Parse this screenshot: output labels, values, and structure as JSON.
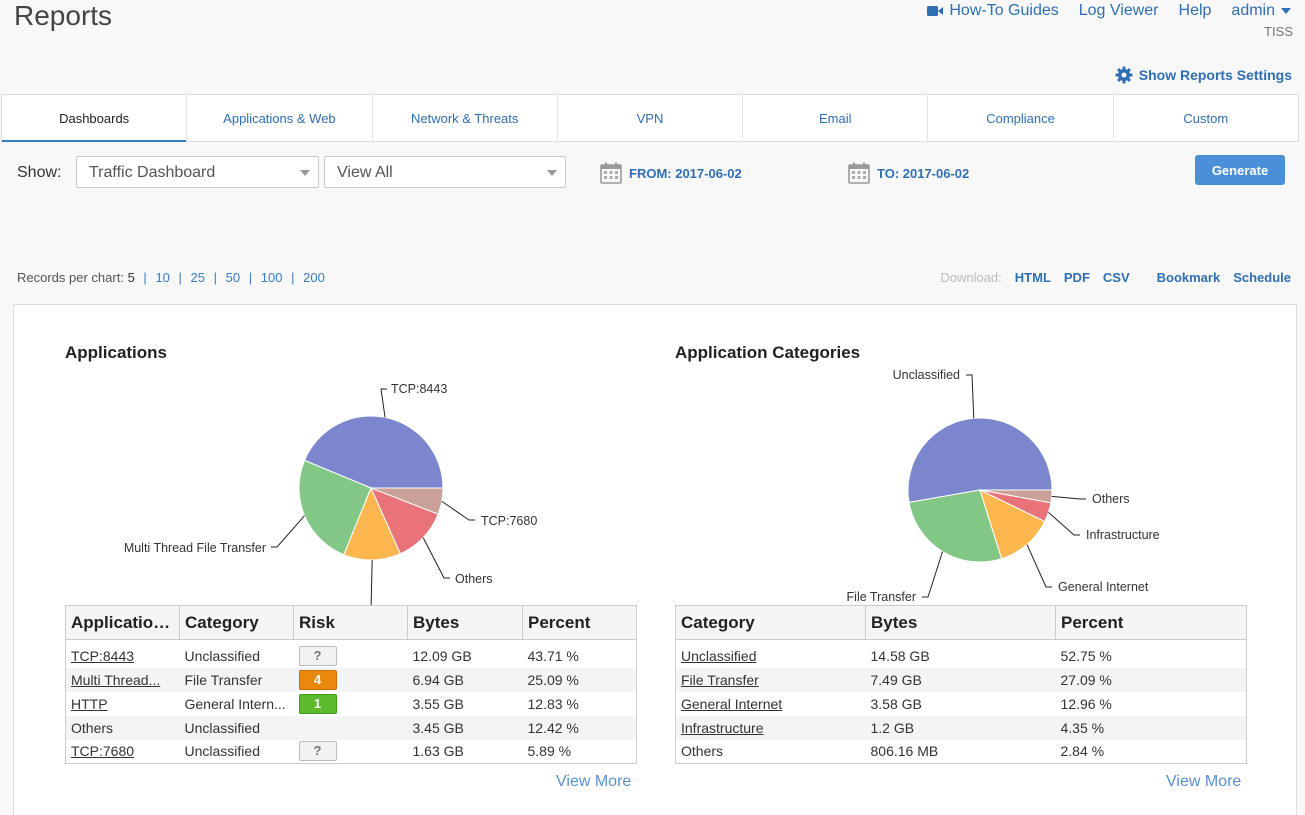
{
  "header": {
    "title": "Reports",
    "nav": {
      "howto": "How-To Guides",
      "logviewer": "Log Viewer",
      "help": "Help",
      "admin": "admin"
    },
    "tenant": "TISS",
    "settings_link": "Show Reports Settings"
  },
  "tabs": [
    "Dashboards",
    "Applications & Web",
    "Network & Threats",
    "VPN",
    "Email",
    "Compliance",
    "Custom"
  ],
  "filters": {
    "show_label": "Show:",
    "dashboard_select": "Traffic Dashboard",
    "view_select": "View All",
    "from": "FROM: 2017-06-02",
    "to": "TO: 2017-06-02",
    "generate": "Generate"
  },
  "records": {
    "label": "Records per chart:",
    "options": [
      "5",
      "10",
      "25",
      "50",
      "100",
      "200"
    ]
  },
  "download": {
    "label": "Download:",
    "html": "HTML",
    "pdf": "PDF",
    "csv": "CSV",
    "bookmark": "Bookmark",
    "schedule": "Schedule"
  },
  "applications": {
    "title": "Applications",
    "columns": [
      "Application...",
      "Category",
      "Risk",
      "Bytes",
      "Percent"
    ],
    "rows": [
      {
        "app": "TCP:8443",
        "category": "Unclassified",
        "risk": "?",
        "bytes": "12.09 GB",
        "percent": "43.71 %"
      },
      {
        "app": "Multi Thread...",
        "category": "File Transfer",
        "risk": "4",
        "bytes": "6.94 GB",
        "percent": "25.09 %"
      },
      {
        "app": "HTTP",
        "category": "General Intern...",
        "risk": "1",
        "bytes": "3.55 GB",
        "percent": "12.83 %"
      },
      {
        "app": "Others",
        "category": "Unclassified",
        "risk": "",
        "bytes": "3.45 GB",
        "percent": "12.42 %"
      },
      {
        "app": "TCP:7680",
        "category": "Unclassified",
        "risk": "?",
        "bytes": "1.63 GB",
        "percent": "5.89 %"
      }
    ],
    "view_more": "View More"
  },
  "categories": {
    "title": "Application Categories",
    "columns": [
      "Category",
      "Bytes",
      "Percent"
    ],
    "rows": [
      {
        "category": "Unclassified",
        "bytes": "14.58 GB",
        "percent": "52.75 %"
      },
      {
        "category": "File Transfer",
        "bytes": "7.49 GB",
        "percent": "27.09 %"
      },
      {
        "category": "General Internet",
        "bytes": "3.58 GB",
        "percent": "12.96 %"
      },
      {
        "category": "Infrastructure",
        "bytes": "1.2 GB",
        "percent": "4.35 %"
      },
      {
        "category": "Others",
        "bytes": "806.16 MB",
        "percent": "2.84 %"
      }
    ],
    "view_more": "View More"
  },
  "chart_data": [
    {
      "type": "pie",
      "title": "Applications",
      "categories": [
        "TCP:8443",
        "Multi Thread File Transfer",
        "HTTP",
        "Others",
        "TCP:7680"
      ],
      "values": [
        43.71,
        25.09,
        12.83,
        12.42,
        5.89
      ],
      "colors": [
        "#7b86cf",
        "#82c785",
        "#fdb74e",
        "#e8747a",
        "#c9a199"
      ],
      "labels": [
        "TCP:8443",
        "Multi Thread File Transfer",
        "",
        "Others",
        "TCP:7680"
      ]
    },
    {
      "type": "pie",
      "title": "Application Categories",
      "categories": [
        "Unclassified",
        "File Transfer",
        "General Internet",
        "Infrastructure",
        "Others"
      ],
      "values": [
        52.75,
        27.09,
        12.96,
        4.35,
        2.84
      ],
      "colors": [
        "#7b86cf",
        "#82c785",
        "#fdb74e",
        "#e8747a",
        "#c9a199"
      ],
      "labels": [
        "Unclassified",
        "File Transfer",
        "General Internet",
        "Infrastructure",
        "Others"
      ]
    }
  ]
}
